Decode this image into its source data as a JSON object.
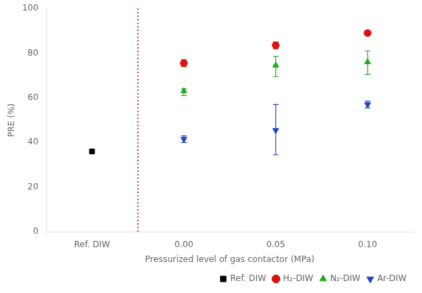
{
  "chart_data": {
    "type": "scatter",
    "categories": [
      "Ref. DIW",
      "0.00",
      "0.05",
      "0.10"
    ],
    "xlabel": "Pressurized level of gas contactor (MPa)",
    "ylabel": "PRE (%)",
    "ylim": [
      0,
      100
    ],
    "yticks": [
      0,
      20,
      40,
      60,
      80,
      100
    ],
    "grid": false,
    "legend": "lower right",
    "annotations": [
      {
        "type": "vline",
        "after": "Ref. DIW",
        "color": "#cc0000",
        "line_style": "dotted"
      }
    ],
    "series": [
      {
        "name": "Ref. DIW",
        "color": "#000000",
        "marker": "square",
        "values": [
          36.0,
          null,
          null,
          null
        ]
      },
      {
        "name": "H₂-DIW",
        "color": "#dd1111",
        "marker": "circle",
        "values": [
          null,
          75.5,
          83.5,
          89.0
        ],
        "yerr_low": [
          null,
          1.5,
          1.5,
          0.5
        ],
        "yerr_high": [
          null,
          1.5,
          1.5,
          0.5
        ]
      },
      {
        "name": "N₂-DIW",
        "color": "#22aa22",
        "marker": "triangle_up",
        "values": [
          null,
          63.0,
          74.5,
          76.0
        ],
        "yerr_low": [
          null,
          2.0,
          5.0,
          5.5
        ],
        "yerr_high": [
          null,
          1.0,
          4.0,
          5.0
        ]
      },
      {
        "name": "Ar-DIW",
        "color": "#2244cc",
        "marker": "triangle_down",
        "values": [
          null,
          41.5,
          45.5,
          57.0
        ],
        "yerr_low": [
          null,
          1.5,
          11.0,
          1.5
        ],
        "yerr_high": [
          null,
          1.5,
          11.5,
          1.5
        ]
      }
    ]
  }
}
